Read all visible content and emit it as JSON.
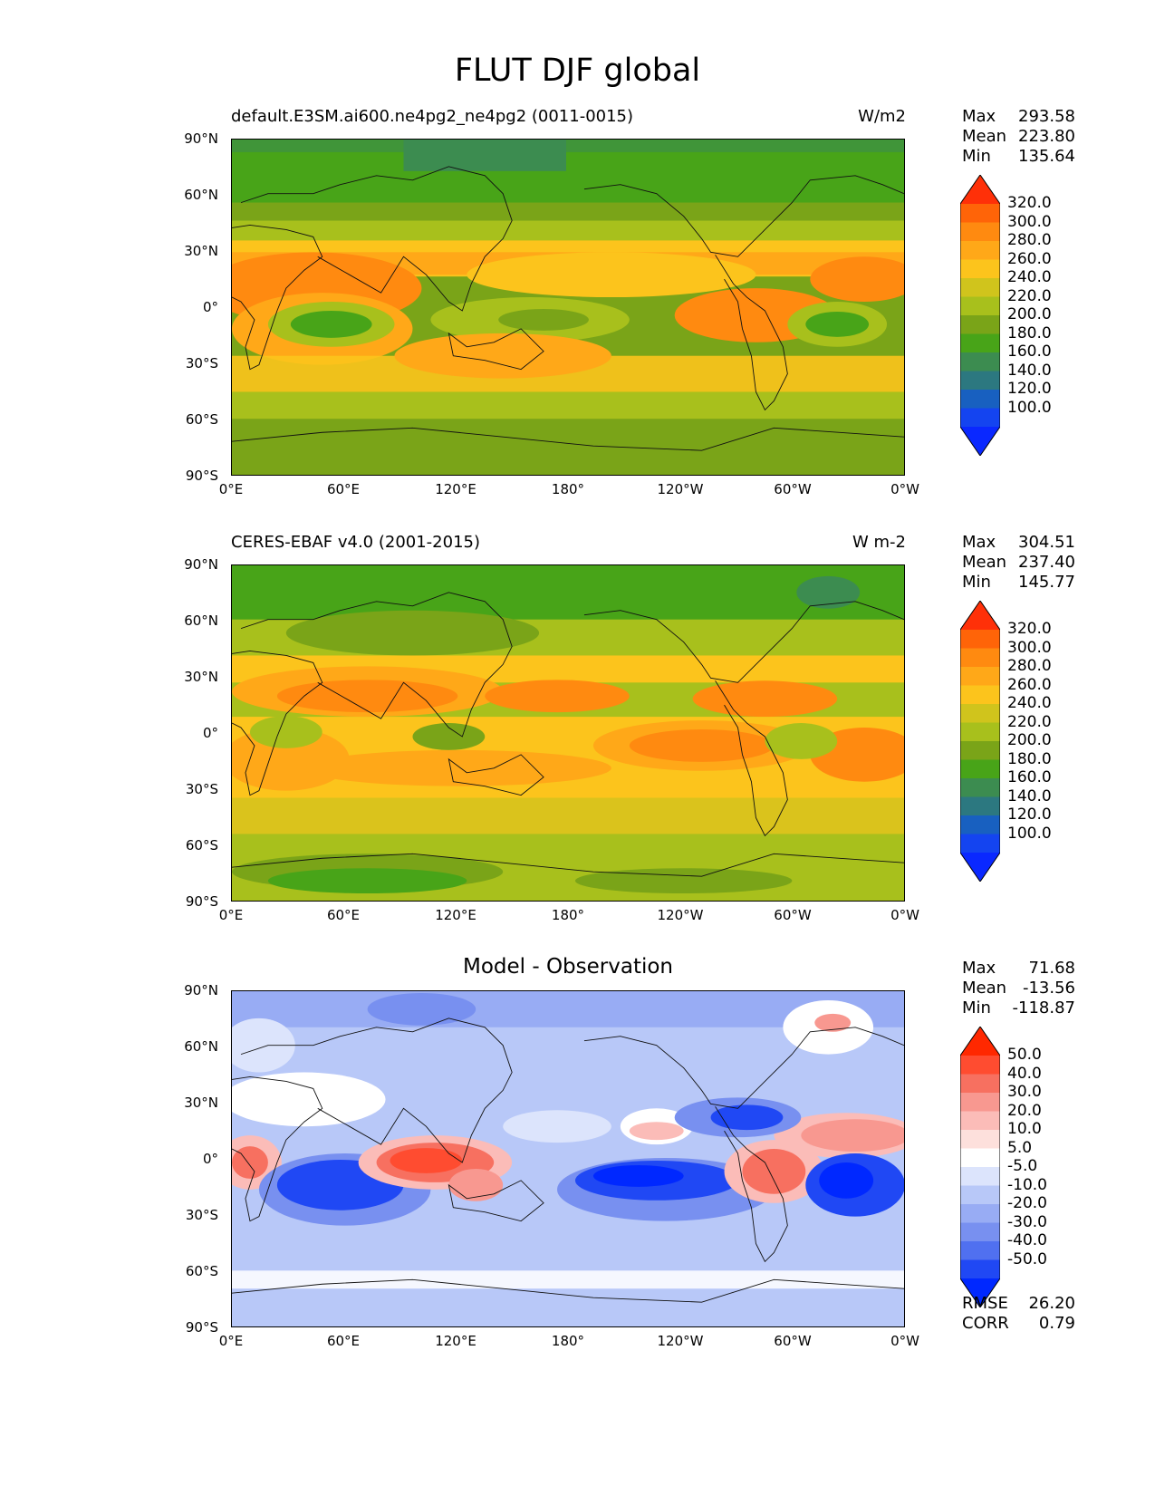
{
  "title": "FLUT DJF global",
  "panels": [
    {
      "left_title": "default.E3SM.ai600.ne4pg2_ne4pg2 (0011-0015)",
      "right_title": "W/m2",
      "center_title": "",
      "stats": [
        {
          "key": "Max",
          "value": "293.58"
        },
        {
          "key": "Mean",
          "value": "223.80"
        },
        {
          "key": "Min",
          "value": "135.64"
        }
      ],
      "extra_stats": []
    },
    {
      "left_title": "CERES-EBAF v4.0 (2001-2015)",
      "right_title": "W m-2",
      "center_title": "",
      "stats": [
        {
          "key": "Max",
          "value": "304.51"
        },
        {
          "key": "Mean",
          "value": "237.40"
        },
        {
          "key": "Min",
          "value": "145.77"
        }
      ],
      "extra_stats": []
    },
    {
      "left_title": "",
      "right_title": "",
      "center_title": "Model - Observation",
      "stats": [
        {
          "key": "Max",
          "value": "71.68"
        },
        {
          "key": "Mean",
          "value": "-13.56"
        },
        {
          "key": "Min",
          "value": "-118.87"
        }
      ],
      "extra_stats": [
        {
          "key": "RMSE",
          "value": "26.20"
        },
        {
          "key": "CORR",
          "value": "0.79"
        }
      ]
    }
  ],
  "axes": {
    "y_ticks": [
      "90°N",
      "60°N",
      "30°N",
      "0°",
      "30°S",
      "60°S",
      "90°S"
    ],
    "x_ticks": [
      "0°E",
      "60°E",
      "120°E",
      "180°",
      "120°W",
      "60°W",
      "0°W"
    ]
  },
  "colorbars": {
    "field": {
      "labels": [
        "320.0",
        "300.0",
        "280.0",
        "260.0",
        "240.0",
        "220.0",
        "200.0",
        "180.0",
        "160.0",
        "140.0",
        "120.0",
        "100.0"
      ],
      "colors": [
        "#ff3008",
        "#ff6408",
        "#ff8a10",
        "#ffa818",
        "#fcc41c",
        "#d0c41c",
        "#a8c01c",
        "#7aa418",
        "#48a418",
        "#3c8c50",
        "#2c7880",
        "#1860c0",
        "#1444f0",
        "#0a28ff"
      ]
    },
    "diff": {
      "labels": [
        "50.0",
        "40.0",
        "30.0",
        "20.0",
        "10.0",
        "5.0",
        "-5.0",
        "-10.0",
        "-20.0",
        "-30.0",
        "-40.0",
        "-50.0"
      ],
      "colors": [
        "#ff2800",
        "#ff4c30",
        "#f77060",
        "#f89890",
        "#fbbcb8",
        "#fde0dc",
        "#ffffff",
        "#dce4fc",
        "#b8c8f8",
        "#98acf4",
        "#7890f0",
        "#5070f0",
        "#2048f4",
        "#0028ff"
      ]
    }
  },
  "chart_data": [
    {
      "type": "heatmap",
      "title": "default.E3SM.ai600.ne4pg2_ne4pg2 (0011-0015)",
      "units": "W/m2",
      "x_ticks": [
        "0°E",
        "60°E",
        "120°E",
        "180°",
        "120°W",
        "60°W",
        "0°W"
      ],
      "y_ticks": [
        "90°N",
        "60°N",
        "30°N",
        "0°",
        "30°S",
        "60°S",
        "90°S"
      ],
      "colorbar_levels": [
        100,
        120,
        140,
        160,
        180,
        200,
        220,
        240,
        260,
        280,
        300,
        320
      ],
      "max": 293.58,
      "mean": 223.8,
      "min": 135.64
    },
    {
      "type": "heatmap",
      "title": "CERES-EBAF v4.0 (2001-2015)",
      "units": "W m-2",
      "x_ticks": [
        "0°E",
        "60°E",
        "120°E",
        "180°",
        "120°W",
        "60°W",
        "0°W"
      ],
      "y_ticks": [
        "90°N",
        "60°N",
        "30°N",
        "0°",
        "30°S",
        "60°S",
        "90°S"
      ],
      "colorbar_levels": [
        100,
        120,
        140,
        160,
        180,
        200,
        220,
        240,
        260,
        280,
        300,
        320
      ],
      "max": 304.51,
      "mean": 237.4,
      "min": 145.77
    },
    {
      "type": "heatmap",
      "title": "Model - Observation",
      "x_ticks": [
        "0°E",
        "60°E",
        "120°E",
        "180°",
        "120°W",
        "60°W",
        "0°W"
      ],
      "y_ticks": [
        "90°N",
        "60°N",
        "30°N",
        "0°",
        "30°S",
        "60°S",
        "90°S"
      ],
      "colorbar_levels": [
        -50,
        -40,
        -30,
        -20,
        -10,
        -5,
        5,
        10,
        20,
        30,
        40,
        50
      ],
      "max": 71.68,
      "mean": -13.56,
      "min": -118.87,
      "rmse": 26.2,
      "corr": 0.79
    }
  ]
}
